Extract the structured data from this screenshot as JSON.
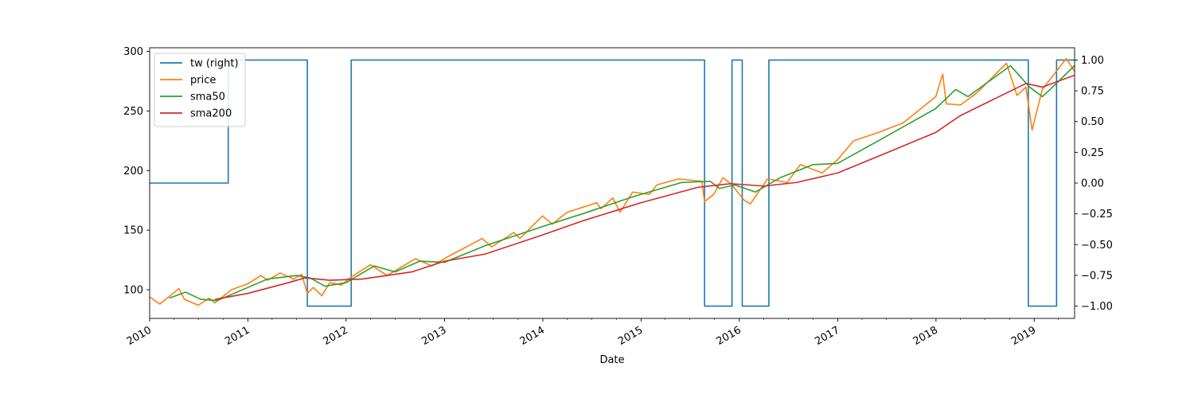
{
  "chart_data": {
    "type": "line",
    "xlabel": "Date",
    "x_range": [
      "2010-01-01",
      "2019-05-31"
    ],
    "x_ticks": [
      "2010",
      "2011",
      "2012",
      "2013",
      "2014",
      "2015",
      "2016",
      "2017",
      "2018",
      "2019"
    ],
    "ylim_left": [
      76,
      303
    ],
    "yticks_left": [
      100,
      150,
      200,
      250,
      300
    ],
    "ylim_right": [
      -1.1,
      1.1
    ],
    "yticks_right": [
      "−1.00",
      "−0.75",
      "−0.50",
      "−0.25",
      "0.00",
      "0.25",
      "0.50",
      "0.75",
      "1.00"
    ],
    "grid": false,
    "legend_position": "top-left",
    "series": [
      {
        "name": "tw (right)",
        "axis": "right",
        "color": "#1f77b4",
        "points": [
          [
            "2010-01-01",
            0
          ],
          [
            "2010-10-20",
            0
          ],
          [
            "2010-10-20",
            1
          ],
          [
            "2011-08-10",
            1
          ],
          [
            "2011-08-10",
            -1
          ],
          [
            "2012-01-20",
            -1
          ],
          [
            "2012-01-20",
            1
          ],
          [
            "2015-08-25",
            1
          ],
          [
            "2015-08-25",
            -1
          ],
          [
            "2015-12-05",
            -1
          ],
          [
            "2015-12-05",
            1
          ],
          [
            "2016-01-12",
            1
          ],
          [
            "2016-01-12",
            -1
          ],
          [
            "2016-04-20",
            -1
          ],
          [
            "2016-04-20",
            1
          ],
          [
            "2018-12-10",
            1
          ],
          [
            "2018-12-10",
            -1
          ],
          [
            "2019-03-25",
            -1
          ],
          [
            "2019-03-25",
            1
          ],
          [
            "2019-05-31",
            1
          ]
        ]
      },
      {
        "name": "price",
        "axis": "left",
        "color": "#ff7f0e",
        "points": [
          [
            "2010-01-01",
            94
          ],
          [
            "2010-02-08",
            88
          ],
          [
            "2010-04-20",
            101
          ],
          [
            "2010-05-10",
            92
          ],
          [
            "2010-07-01",
            87
          ],
          [
            "2010-08-10",
            93
          ],
          [
            "2010-08-31",
            89
          ],
          [
            "2010-11-01",
            100
          ],
          [
            "2011-01-01",
            105
          ],
          [
            "2011-02-18",
            112
          ],
          [
            "2011-03-15",
            108
          ],
          [
            "2011-05-01",
            114
          ],
          [
            "2011-06-20",
            109
          ],
          [
            "2011-07-20",
            113
          ],
          [
            "2011-08-10",
            97
          ],
          [
            "2011-09-01",
            102
          ],
          [
            "2011-10-03",
            95
          ],
          [
            "2011-11-01",
            106
          ],
          [
            "2011-12-15",
            104
          ],
          [
            "2012-01-15",
            110
          ],
          [
            "2012-04-01",
            121
          ],
          [
            "2012-06-01",
            112
          ],
          [
            "2012-09-15",
            126
          ],
          [
            "2012-11-15",
            120
          ],
          [
            "2013-01-15",
            128
          ],
          [
            "2013-05-20",
            143
          ],
          [
            "2013-06-25",
            136
          ],
          [
            "2013-09-15",
            148
          ],
          [
            "2013-10-08",
            143
          ],
          [
            "2013-12-31",
            162
          ],
          [
            "2014-02-05",
            155
          ],
          [
            "2014-04-01",
            165
          ],
          [
            "2014-07-20",
            173
          ],
          [
            "2014-08-05",
            168
          ],
          [
            "2014-09-18",
            177
          ],
          [
            "2014-10-15",
            165
          ],
          [
            "2014-12-01",
            182
          ],
          [
            "2015-02-01",
            180
          ],
          [
            "2015-03-01",
            188
          ],
          [
            "2015-05-20",
            193
          ],
          [
            "2015-08-15",
            191
          ],
          [
            "2015-08-25",
            174
          ],
          [
            "2015-09-28",
            180
          ],
          [
            "2015-11-01",
            194
          ],
          [
            "2015-12-01",
            189
          ],
          [
            "2016-01-20",
            175
          ],
          [
            "2016-02-11",
            172
          ],
          [
            "2016-04-15",
            193
          ],
          [
            "2016-06-27",
            190
          ],
          [
            "2016-08-15",
            205
          ],
          [
            "2016-11-04",
            198
          ],
          [
            "2016-12-31",
            209
          ],
          [
            "2017-03-01",
            225
          ],
          [
            "2017-06-01",
            232
          ],
          [
            "2017-09-01",
            240
          ],
          [
            "2017-12-31",
            262
          ],
          [
            "2018-01-26",
            281
          ],
          [
            "2018-02-08",
            256
          ],
          [
            "2018-04-02",
            255
          ],
          [
            "2018-06-01",
            265
          ],
          [
            "2018-09-20",
            290
          ],
          [
            "2018-10-29",
            263
          ],
          [
            "2018-12-01",
            270
          ],
          [
            "2018-12-24",
            234
          ],
          [
            "2019-01-31",
            268
          ],
          [
            "2019-04-30",
            294
          ],
          [
            "2019-05-31",
            283
          ]
        ]
      },
      {
        "name": "sma50",
        "axis": "left",
        "color": "#2ca02c",
        "points": [
          [
            "2010-03-15",
            93
          ],
          [
            "2010-05-15",
            98
          ],
          [
            "2010-07-10",
            92
          ],
          [
            "2010-09-10",
            91
          ],
          [
            "2010-12-01",
            99
          ],
          [
            "2011-03-15",
            109
          ],
          [
            "2011-07-01",
            112
          ],
          [
            "2011-08-20",
            110
          ],
          [
            "2011-10-15",
            103
          ],
          [
            "2012-01-01",
            106
          ],
          [
            "2012-04-15",
            120
          ],
          [
            "2012-07-01",
            115
          ],
          [
            "2012-10-01",
            124
          ],
          [
            "2012-12-31",
            123
          ],
          [
            "2013-06-01",
            137
          ],
          [
            "2013-12-31",
            153
          ],
          [
            "2014-06-01",
            164
          ],
          [
            "2014-12-01",
            178
          ],
          [
            "2015-06-01",
            190
          ],
          [
            "2015-09-15",
            191
          ],
          [
            "2015-10-20",
            185
          ],
          [
            "2015-12-15",
            188
          ],
          [
            "2016-03-01",
            182
          ],
          [
            "2016-06-01",
            194
          ],
          [
            "2016-10-01",
            205
          ],
          [
            "2016-12-31",
            206
          ],
          [
            "2017-06-01",
            225
          ],
          [
            "2017-12-31",
            252
          ],
          [
            "2018-03-15",
            268
          ],
          [
            "2018-04-30",
            262
          ],
          [
            "2018-10-05",
            288
          ],
          [
            "2018-12-15",
            270
          ],
          [
            "2019-01-31",
            262
          ],
          [
            "2019-03-01",
            268
          ],
          [
            "2019-05-31",
            288
          ]
        ]
      },
      {
        "name": "sma200",
        "axis": "left",
        "color": "#d62728",
        "points": [
          [
            "2010-09-01",
            92
          ],
          [
            "2011-01-01",
            97
          ],
          [
            "2011-06-01",
            106
          ],
          [
            "2011-08-01",
            110
          ],
          [
            "2011-11-01",
            108
          ],
          [
            "2012-03-01",
            109
          ],
          [
            "2012-09-01",
            115
          ],
          [
            "2013-01-01",
            124
          ],
          [
            "2013-06-01",
            130
          ],
          [
            "2013-12-31",
            146
          ],
          [
            "2014-06-01",
            158
          ],
          [
            "2014-12-31",
            173
          ],
          [
            "2015-08-01",
            186
          ],
          [
            "2015-12-01",
            189
          ],
          [
            "2016-04-01",
            187
          ],
          [
            "2016-08-01",
            190
          ],
          [
            "2017-01-01",
            198
          ],
          [
            "2017-06-01",
            212
          ],
          [
            "2017-12-31",
            232
          ],
          [
            "2018-04-01",
            246
          ],
          [
            "2018-09-01",
            263
          ],
          [
            "2018-12-01",
            273
          ],
          [
            "2019-02-01",
            270
          ],
          [
            "2019-05-31",
            280
          ]
        ]
      }
    ]
  }
}
